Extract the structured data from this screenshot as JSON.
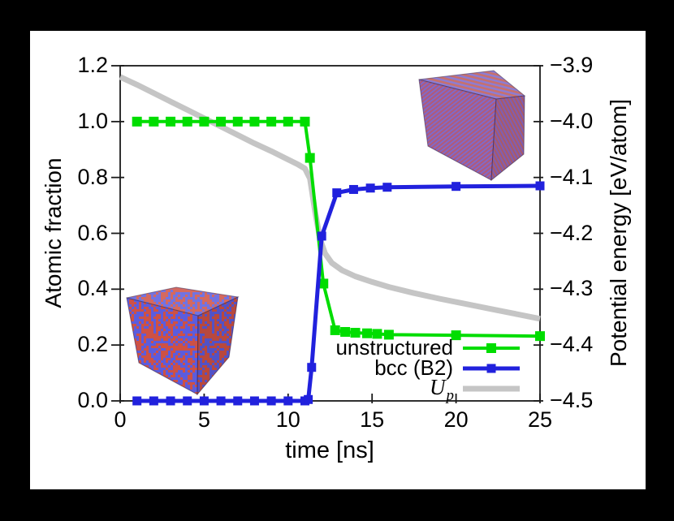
{
  "chart_data": {
    "type": "line",
    "title": "",
    "xlabel": "time [ns]",
    "ylabel_left": "Atomic fraction",
    "ylabel_right": "Potential energy [eV/atom]",
    "xlim": [
      0,
      25
    ],
    "xticks": {
      "values": [
        0,
        5,
        10,
        15,
        20,
        25
      ],
      "labels": [
        "0",
        "5",
        "10",
        "15",
        "20",
        "25"
      ]
    },
    "ylim_left": [
      0.0,
      1.2
    ],
    "yticks_left": {
      "values": [
        0.0,
        0.2,
        0.4,
        0.6,
        0.8,
        1.0,
        1.2
      ],
      "labels": [
        "0.0",
        "0.2",
        "0.4",
        "0.6",
        "0.8",
        "1.0",
        "1.2"
      ]
    },
    "ylim_right": [
      -4.5,
      -3.9
    ],
    "yticks_right": {
      "values": [
        -4.5,
        -4.4,
        -4.3,
        -4.2,
        -4.1,
        -4.0,
        -3.9
      ],
      "labels": [
        "−4.5",
        "−4.4",
        "−4.3",
        "−4.2",
        "−4.1",
        "−4.0",
        "−3.9"
      ]
    },
    "grid": false,
    "legend_position": "inside bottom-right",
    "series": [
      {
        "name": "Up",
        "axis": "right",
        "color": "#c5c5c5",
        "marker": "none",
        "points": [
          [
            0,
            -3.92
          ],
          [
            1,
            -3.934
          ],
          [
            2,
            -3.949
          ],
          [
            3,
            -3.964
          ],
          [
            4,
            -3.979
          ],
          [
            5,
            -3.994
          ],
          [
            6,
            -4.009
          ],
          [
            7,
            -4.024
          ],
          [
            8,
            -4.039
          ],
          [
            9,
            -4.053
          ],
          [
            10,
            -4.068
          ],
          [
            10.6,
            -4.077
          ],
          [
            11.0,
            -4.084
          ],
          [
            11.3,
            -4.102
          ],
          [
            11.6,
            -4.16
          ],
          [
            11.9,
            -4.21
          ],
          [
            12.2,
            -4.236
          ],
          [
            12.6,
            -4.253
          ],
          [
            13.2,
            -4.266
          ],
          [
            14,
            -4.277
          ],
          [
            15,
            -4.287
          ],
          [
            16,
            -4.296
          ],
          [
            17.5,
            -4.307
          ],
          [
            19,
            -4.317
          ],
          [
            20.5,
            -4.326
          ],
          [
            22,
            -4.335
          ],
          [
            23.5,
            -4.344
          ],
          [
            25,
            -4.353
          ]
        ]
      },
      {
        "name": "unstructured",
        "axis": "left",
        "color": "#00dd00",
        "marker": "square",
        "points": [
          [
            1,
            1.0
          ],
          [
            2,
            1.0
          ],
          [
            3,
            1.0
          ],
          [
            4,
            1.0
          ],
          [
            5,
            1.0
          ],
          [
            6,
            1.0
          ],
          [
            7,
            1.0
          ],
          [
            8,
            1.0
          ],
          [
            9,
            1.0
          ],
          [
            10,
            1.0
          ],
          [
            11,
            1.0
          ],
          [
            11.3,
            0.87
          ],
          [
            12.1,
            0.42
          ],
          [
            12.8,
            0.253
          ],
          [
            13.4,
            0.247
          ],
          [
            14,
            0.244
          ],
          [
            14.7,
            0.242
          ],
          [
            15.3,
            0.24
          ],
          [
            16,
            0.237
          ],
          [
            20,
            0.235
          ],
          [
            25,
            0.232
          ]
        ]
      },
      {
        "name": "bcc (B2)",
        "axis": "left",
        "color": "#2121dd",
        "marker": "square",
        "points": [
          [
            1,
            0
          ],
          [
            2,
            0
          ],
          [
            3,
            0
          ],
          [
            4,
            0
          ],
          [
            5,
            0
          ],
          [
            6,
            0
          ],
          [
            7,
            0
          ],
          [
            8,
            0
          ],
          [
            9,
            0
          ],
          [
            10,
            0
          ],
          [
            11,
            0
          ],
          [
            11.2,
            0.005
          ],
          [
            11.4,
            0.12
          ],
          [
            12.0,
            0.59
          ],
          [
            12.9,
            0.745
          ],
          [
            13.9,
            0.757
          ],
          [
            14.9,
            0.762
          ],
          [
            15.9,
            0.765
          ],
          [
            20,
            0.768
          ],
          [
            25,
            0.77
          ]
        ]
      }
    ]
  },
  "legend": {
    "items": [
      {
        "label": "unstructured"
      },
      {
        "label": "bcc (B2)"
      },
      {
        "label_main": "U",
        "label_sub": "p"
      }
    ]
  },
  "colors": {
    "unstructured_series": "#00dd00",
    "bcc_series": "#2121dd",
    "up_series": "#c5c5c5",
    "cube_atom_red": "#cd5146",
    "cube_atom_blue": "#5c5cdd",
    "background": "#000000",
    "panel": "#ffffff"
  }
}
